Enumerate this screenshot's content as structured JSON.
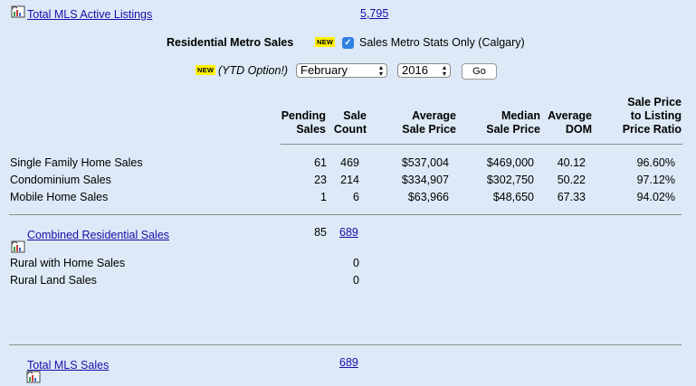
{
  "top": {
    "active_listings_label": "Total MLS Active Listings",
    "active_listings_value": "5,795"
  },
  "metro": {
    "title": "Residential Metro Sales",
    "new_badge": "NEW",
    "checkbox_label": "Sales Metro Stats Only (Calgary)",
    "checkbox_checked": true
  },
  "ytd": {
    "new_badge": "NEW",
    "label": "(YTD Option!)",
    "month": "February",
    "year": "2016",
    "go_label": "Go"
  },
  "table": {
    "headers": {
      "pending": [
        "Pending",
        "Sales"
      ],
      "sale_count": [
        "Sale",
        "Count"
      ],
      "avg_price": [
        "Average",
        "Sale Price"
      ],
      "median_price": [
        "Median",
        "Sale Price"
      ],
      "avg_dom": [
        "Average",
        "DOM"
      ],
      "ratio": [
        "Sale Price",
        "to Listing",
        "Price Ratio"
      ]
    },
    "rows": [
      {
        "label": "Single Family Home Sales",
        "pending": "61",
        "count": "469",
        "avg": "$537,004",
        "median": "$469,000",
        "dom": "40.12",
        "ratio": "96.60%"
      },
      {
        "label": "Condominium Sales",
        "pending": "23",
        "count": "214",
        "avg": "$334,907",
        "median": "$302,750",
        "dom": "50.22",
        "ratio": "97.12%"
      },
      {
        "label": "Mobile Home Sales",
        "pending": "1",
        "count": "6",
        "avg": "$63,966",
        "median": "$48,650",
        "dom": "67.33",
        "ratio": "94.02%"
      }
    ],
    "combined": {
      "label": "Combined Residential Sales",
      "pending": "85",
      "count": "689"
    },
    "rural": [
      {
        "label": "Rural with Home Sales",
        "count": "0"
      },
      {
        "label": "Rural Land Sales",
        "count": "0"
      }
    ],
    "total": {
      "label": "Total MLS Sales",
      "count": "689"
    }
  },
  "colors": {
    "background": "#dde9f6",
    "link": "#1a0dab",
    "new_badge": "#fff200",
    "checkbox": "#2f7fe0"
  }
}
